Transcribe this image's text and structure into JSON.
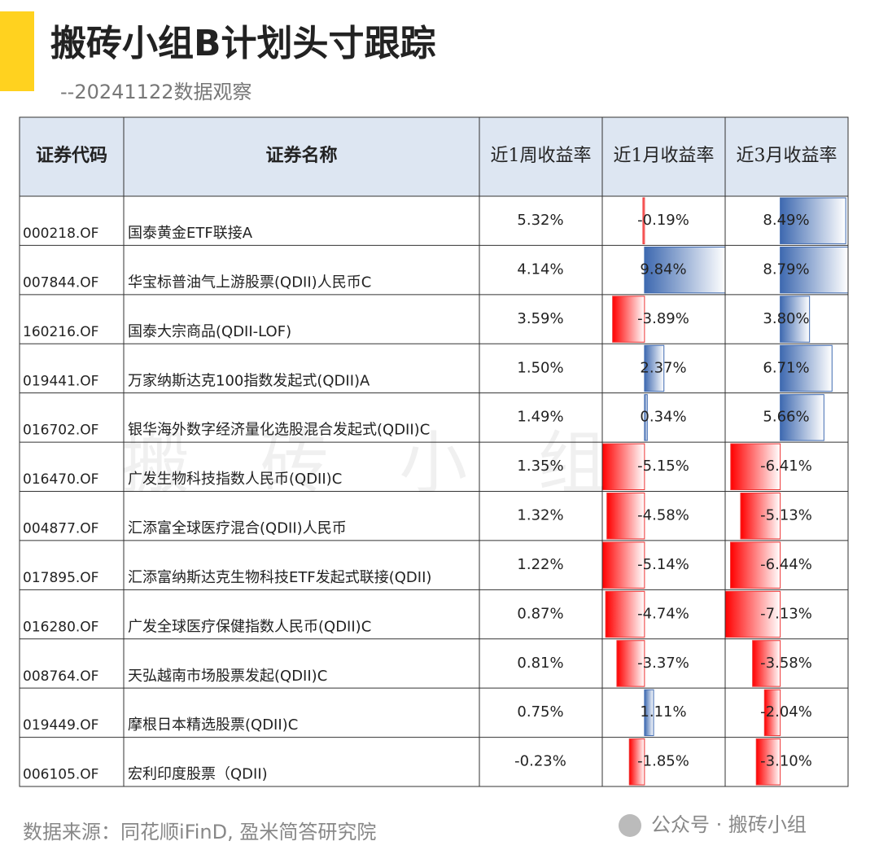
{
  "header": {
    "title": "搬砖小组B计划头寸跟踪",
    "subtitle": "--20241122数据观察"
  },
  "watermark": "搬 砖 小 组",
  "table": {
    "columns": [
      "证券代码",
      "证券名称",
      "近1周收益率",
      "近1月收益率",
      "近3月收益率"
    ],
    "rows": [
      [
        "000218.OF",
        "国泰黄金ETF联接A",
        "5.32%",
        {
          "value": -0.19,
          "label": "-0.19%"
        },
        {
          "value": 8.49,
          "label": "8.49%"
        }
      ],
      [
        "007844.OF",
        "华宝标普油气上游股票(QDII)人民币C",
        "4.14%",
        {
          "value": 9.84,
          "label": "9.84%"
        },
        {
          "value": 8.79,
          "label": "8.79%"
        }
      ],
      [
        "160216.OF",
        "国泰大宗商品(QDII-LOF)",
        "3.59%",
        {
          "value": -3.89,
          "label": "-3.89%"
        },
        {
          "value": 3.8,
          "label": "3.80%"
        }
      ],
      [
        "019441.OF",
        "万家纳斯达克100指数发起式(QDII)A",
        "1.50%",
        {
          "value": 2.37,
          "label": "2.37%"
        },
        {
          "value": 6.71,
          "label": "6.71%"
        }
      ],
      [
        "016702.OF",
        "银华海外数字经济量化选股混合发起式(QDII)C",
        "1.49%",
        {
          "value": 0.34,
          "label": "0.34%"
        },
        {
          "value": 5.66,
          "label": "5.66%"
        }
      ],
      [
        "016470.OF",
        "广发生物科技指数人民币(QDII)C",
        "1.35%",
        {
          "value": -5.15,
          "label": "-5.15%"
        },
        {
          "value": -6.41,
          "label": "-6.41%"
        }
      ],
      [
        "004877.OF",
        "汇添富全球医疗混合(QDII)人民币",
        "1.32%",
        {
          "value": -4.58,
          "label": "-4.58%"
        },
        {
          "value": -5.13,
          "label": "-5.13%"
        }
      ],
      [
        "017895.OF",
        "汇添富纳斯达克生物科技ETF发起式联接(QDII)",
        "1.22%",
        {
          "value": -5.14,
          "label": "-5.14%"
        },
        {
          "value": -6.44,
          "label": "-6.44%"
        }
      ],
      [
        "016280.OF",
        "广发全球医疗保健指数人民币(QDII)C",
        "0.87%",
        {
          "value": -4.74,
          "label": "-4.74%"
        },
        {
          "value": -7.13,
          "label": "-7.13%"
        }
      ],
      [
        "008764.OF",
        "天弘越南市场股票发起(QDII)C",
        "0.81%",
        {
          "value": -3.37,
          "label": "-3.37%"
        },
        {
          "value": -3.58,
          "label": "-3.58%"
        }
      ],
      [
        "019449.OF",
        "摩根日本精选股票(QDII)C",
        "0.75%",
        {
          "value": 1.11,
          "label": "1.11%"
        },
        {
          "value": -2.04,
          "label": "-2.04%"
        }
      ],
      [
        "006105.OF",
        "宏利印度股票（QDII)",
        "-0.23%",
        {
          "value": -1.85,
          "label": "-1.85%"
        },
        {
          "value": -3.1,
          "label": "-3.10%"
        }
      ]
    ]
  },
  "footer": {
    "source": "数据来源：同花顺iFinD, 盈米简答研究院",
    "account": "公众号 · 搬砖小组"
  }
}
